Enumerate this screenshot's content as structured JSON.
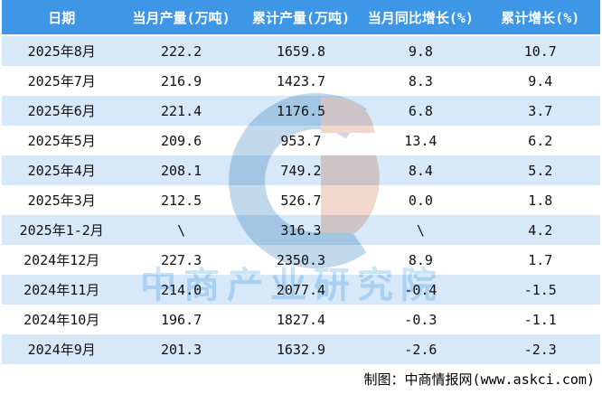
{
  "table": {
    "columns": [
      "日期",
      "当月产量(万吨)",
      "累计产量(万吨)",
      "当月同比增长(%)",
      "累计增长(%)"
    ],
    "rows": [
      [
        "2025年8月",
        "222.2",
        "1659.8",
        "9.8",
        "10.7"
      ],
      [
        "2025年7月",
        "216.9",
        "1423.7",
        "8.3",
        "9.4"
      ],
      [
        "2025年6月",
        "221.4",
        "1176.5",
        "6.8",
        "3.7"
      ],
      [
        "2025年5月",
        "209.6",
        "953.7",
        "13.4",
        "6.2"
      ],
      [
        "2025年4月",
        "208.1",
        "749.2",
        "8.4",
        "5.2"
      ],
      [
        "2025年3月",
        "212.5",
        "526.7",
        "0.0",
        "1.8"
      ],
      [
        "2025年1-2月",
        "\\",
        "316.3",
        "\\",
        "4.2"
      ],
      [
        "2024年12月",
        "227.3",
        "2350.3",
        "8.9",
        "1.7"
      ],
      [
        "2024年11月",
        "214.0",
        "2077.4",
        "-0.4",
        "-1.5"
      ],
      [
        "2024年10月",
        "196.7",
        "1827.4",
        "-0.3",
        "-1.1"
      ],
      [
        "2024年9月",
        "201.3",
        "1632.9",
        "-2.6",
        "-2.3"
      ]
    ]
  },
  "chart_data": {
    "type": "table",
    "title": "",
    "categories": [
      "2025年8月",
      "2025年7月",
      "2025年6月",
      "2025年5月",
      "2025年4月",
      "2025年3月",
      "2025年1-2月",
      "2024年12月",
      "2024年11月",
      "2024年10月",
      "2024年9月"
    ],
    "series": [
      {
        "name": "当月产量(万吨)",
        "values": [
          222.2,
          216.9,
          221.4,
          209.6,
          208.1,
          212.5,
          null,
          227.3,
          214.0,
          196.7,
          201.3
        ]
      },
      {
        "name": "累计产量(万吨)",
        "values": [
          1659.8,
          1423.7,
          1176.5,
          953.7,
          749.2,
          526.7,
          316.3,
          2350.3,
          2077.4,
          1827.4,
          1632.9
        ]
      },
      {
        "name": "当月同比增长(%)",
        "values": [
          9.8,
          8.3,
          6.8,
          13.4,
          8.4,
          0.0,
          null,
          8.9,
          -0.4,
          -0.3,
          -2.6
        ]
      },
      {
        "name": "累计增长(%)",
        "values": [
          10.7,
          9.4,
          3.7,
          6.2,
          5.2,
          1.8,
          4.2,
          1.7,
          -1.5,
          -1.1,
          -2.3
        ]
      }
    ]
  },
  "watermark": {
    "logo": "askci-logo",
    "text": "中商产业研究院"
  },
  "footer": {
    "credit": "制图：中商情报网(www.askci.com)"
  },
  "colors": {
    "header_bg": "#3e97e6",
    "stripe": "#d7e9f8",
    "logo_blue": "#c2d9ec",
    "logo_pink": "#f2d7cd",
    "watermark_text": "#c8e4f7"
  }
}
